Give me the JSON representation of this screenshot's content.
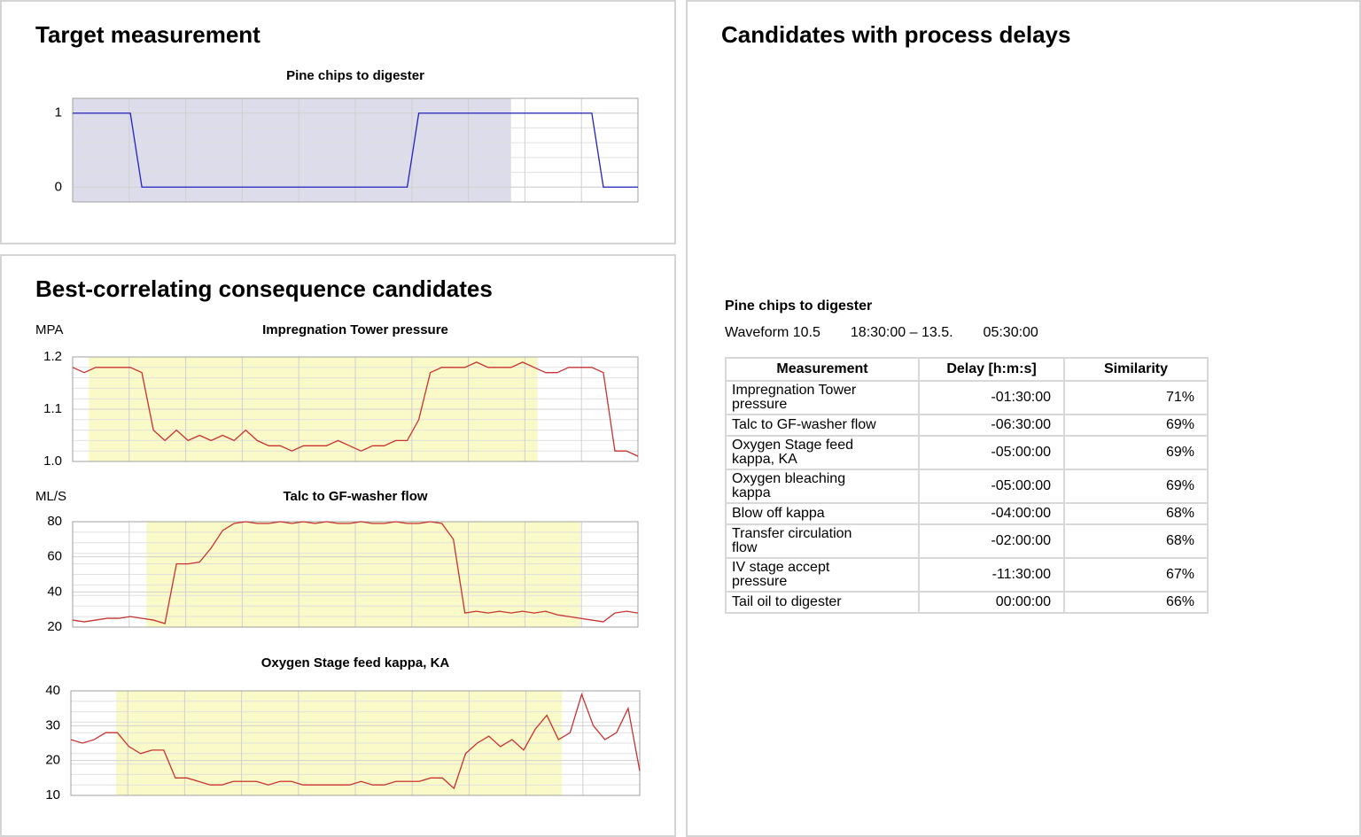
{
  "target_panel": {
    "title": "Target measurement",
    "chart": {
      "type": "line",
      "title": "Pine chips to digester",
      "color": "#2222c0",
      "highlight": [
        0,
        38
      ],
      "highlight_color": "#dcdcea",
      "ylim": [
        -0.2,
        1.2
      ],
      "yticks": [
        0,
        1
      ],
      "values": [
        1,
        1,
        1,
        1,
        1,
        1,
        0,
        0,
        0,
        0,
        0,
        0,
        0,
        0,
        0,
        0,
        0,
        0,
        0,
        0,
        0,
        0,
        0,
        0,
        0,
        0,
        0,
        0,
        0,
        0,
        1,
        1,
        1,
        1,
        1,
        1,
        1,
        1,
        1,
        1,
        1,
        1,
        1,
        1,
        1,
        1,
        0,
        0,
        0,
        0
      ]
    }
  },
  "candidates_panel": {
    "title": "Best-correlating consequence candidates",
    "charts": [
      {
        "type": "line",
        "title": "Impregnation Tower pressure",
        "unit": "MPA",
        "color": "#c83232",
        "highlight": [
          1.4,
          40.3
        ],
        "highlight_color": "#fafac8",
        "ylim": [
          1.0,
          1.2
        ],
        "yticks": [
          {
            "value": 1.0,
            "label": "1.0"
          },
          1.1,
          1.2
        ],
        "values": [
          1.18,
          1.17,
          1.18,
          1.18,
          1.18,
          1.18,
          1.17,
          1.06,
          1.04,
          1.06,
          1.04,
          1.05,
          1.04,
          1.05,
          1.04,
          1.06,
          1.04,
          1.03,
          1.03,
          1.02,
          1.03,
          1.03,
          1.03,
          1.04,
          1.03,
          1.02,
          1.03,
          1.03,
          1.04,
          1.04,
          1.08,
          1.17,
          1.18,
          1.18,
          1.18,
          1.19,
          1.18,
          1.18,
          1.18,
          1.19,
          1.18,
          1.17,
          1.17,
          1.18,
          1.18,
          1.18,
          1.17,
          1.02,
          1.02,
          1.01
        ]
      },
      {
        "type": "line",
        "title": "Talc to GF-washer flow",
        "unit": "ML/S",
        "color": "#c83232",
        "highlight": [
          6.4,
          44
        ],
        "highlight_color": "#fafac8",
        "ylim": [
          20,
          80
        ],
        "yticks": [
          20,
          40,
          60,
          80
        ],
        "values": [
          24,
          23,
          24,
          25,
          25,
          26,
          25,
          24,
          22,
          56,
          56,
          57,
          65,
          75,
          79,
          80,
          79,
          79,
          80,
          79,
          80,
          79,
          80,
          79,
          79,
          80,
          79,
          79,
          80,
          79,
          79,
          80,
          79,
          70,
          28,
          29,
          28,
          29,
          28,
          29,
          28,
          29,
          27,
          26,
          25,
          24,
          23,
          28,
          29,
          28
        ]
      },
      {
        "type": "line",
        "title": "Oxygen Stage feed kappa, KA",
        "color": "#c83232",
        "highlight": [
          3.9,
          42.3
        ],
        "highlight_color": "#fafac8",
        "ylim": [
          10,
          40
        ],
        "yticks": [
          10,
          20,
          30,
          40
        ],
        "values": [
          26,
          25,
          26,
          28,
          28,
          24,
          22,
          23,
          23,
          15,
          15,
          14,
          13,
          13,
          14,
          14,
          14,
          13,
          14,
          14,
          13,
          13,
          13,
          13,
          13,
          14,
          13,
          13,
          14,
          14,
          14,
          15,
          15,
          12,
          22,
          25,
          27,
          24,
          26,
          23,
          29,
          33,
          26,
          28,
          39,
          30,
          26,
          28,
          35,
          17
        ]
      }
    ]
  },
  "delays_panel": {
    "title": "Candidates with process delays",
    "target_name": "Pine chips to digester",
    "waveform": [
      "Waveform 10.5",
      "18:30:00 – 13.5.",
      "05:30:00"
    ],
    "table": {
      "header": [
        "Measurement",
        "Delay [h:m:s]",
        "Similarity"
      ],
      "rows": [
        [
          "Impregnation Tower pressure",
          "-01:30:00",
          "71%"
        ],
        [
          "Talc to GF-washer flow",
          "-06:30:00",
          "69%"
        ],
        [
          "Oxygen Stage feed kappa, KA",
          "-05:00:00",
          "69%"
        ],
        [
          "Oxygen bleaching kappa",
          "-05:00:00",
          "69%"
        ],
        [
          "Blow off kappa",
          "-04:00:00",
          "68%"
        ],
        [
          "Transfer circulation flow",
          "-02:00:00",
          "68%"
        ],
        [
          "IV stage accept pressure",
          "-11:30:00",
          "67%"
        ],
        [
          "Tail oil to digester",
          "00:00:00",
          "66%"
        ]
      ]
    }
  }
}
